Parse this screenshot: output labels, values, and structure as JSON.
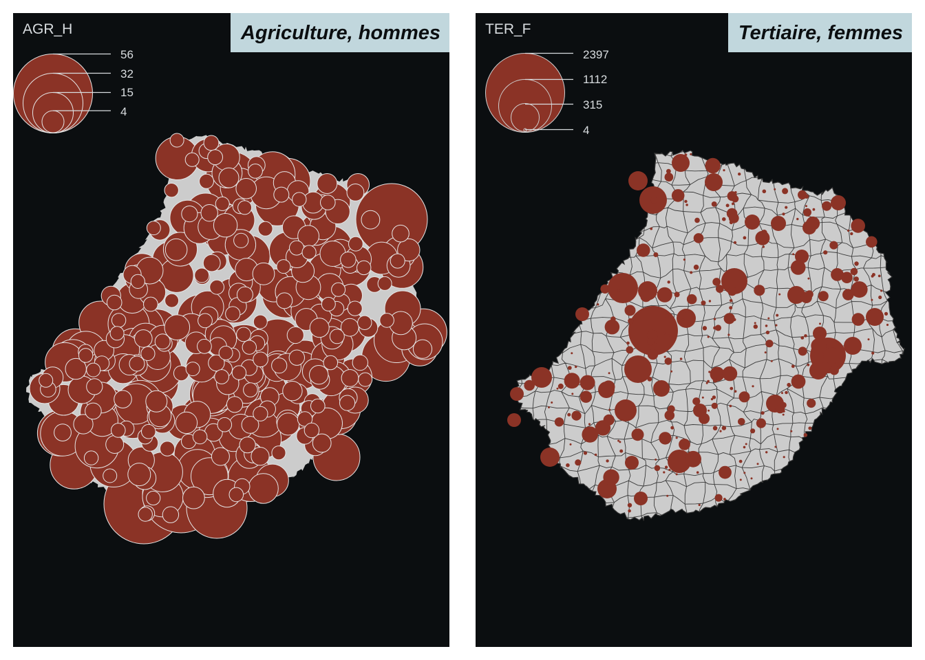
{
  "colors": {
    "background": "#0b0e10",
    "land": "#cccccc",
    "bubble": "#8b3326",
    "title_box": "#c1d7dd",
    "legend_text": "#d9dde0",
    "border_line": "#2b2b2b"
  },
  "maps": [
    {
      "title": "Agriculture, hommes",
      "legend": {
        "title": "AGR_H",
        "values": [
          "56",
          "32",
          "15",
          "4"
        ]
      },
      "symbol": "proportional-circles",
      "bubble_stroke": "light"
    },
    {
      "title": "Tertiaire, femmes",
      "legend": {
        "title": "TER_F",
        "values": [
          "2397",
          "1112",
          "315",
          "4"
        ]
      },
      "symbol": "proportional-circles",
      "bubble_stroke": "none"
    }
  ]
}
